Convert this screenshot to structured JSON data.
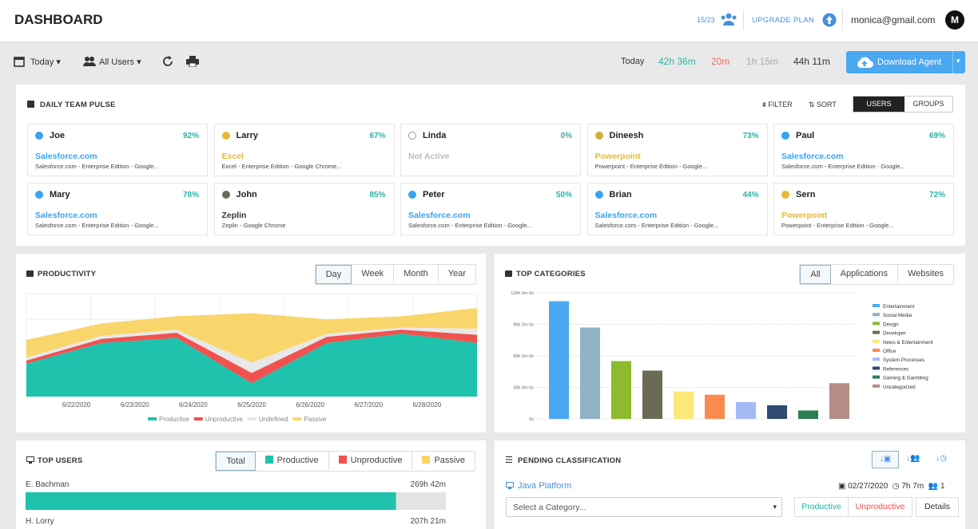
{
  "header": {
    "title": "DASHBOARD",
    "seats": "15/23",
    "upgrade": "UPGRADE PLAN",
    "email": "monica@gmail.com",
    "avatar": "M"
  },
  "toolbar": {
    "date": "Today",
    "users": "All Users",
    "time_label": "Today",
    "times": [
      {
        "text": "42h 36m",
        "color": "#2ab3a6"
      },
      {
        "text": "20m",
        "color": "#f26a5b"
      },
      {
        "text": "1h 15m",
        "color": "#aaaaaa"
      },
      {
        "text": "44h 11m",
        "color": "#333333"
      }
    ],
    "download": "Download Agent"
  },
  "pulse": {
    "title": "DAILY TEAM PULSE",
    "filter": "FILTER",
    "sort": "SORT",
    "tabs": [
      "USERS",
      "GROUPS"
    ],
    "cards": [
      {
        "name": "Joe",
        "pct": "92%",
        "app": "Salesforce.com",
        "detail": "Salesforce.com - Enterprise Edition - Google...",
        "dot": "#3ba3f0",
        "app_color": "#3ba3f0"
      },
      {
        "name": "Larry",
        "pct": "67%",
        "app": "Excel",
        "detail": "Excel - Enterprise Edition - Google Chrome...",
        "dot": "#e6b93a",
        "app_color": "#e6b93a"
      },
      {
        "name": "Linda",
        "pct": "0%",
        "app": "Not Active",
        "dot": "#ffffff",
        "app_color": "#bbbbbb"
      },
      {
        "name": "Dineesh",
        "pct": "73%",
        "app": "Powerpoint",
        "detail": "Powerpoint - Enterprise Edition - Google...",
        "dot": "#d4ad3f",
        "app_color": "#e6b93a"
      },
      {
        "name": "Paul",
        "pct": "69%",
        "app": "Salesforce.com",
        "detail": "Salesforce.com - Enterprise Edition - Google...",
        "dot": "#3ba3f0",
        "app_color": "#3ba3f0"
      },
      {
        "name": "Mary",
        "pct": "78%",
        "app": "Salesforce.com",
        "detail": "Salesforce.com - Enterprise Edition - Google...",
        "dot": "#3ba3f0",
        "app_color": "#3ba3f0"
      },
      {
        "name": "John",
        "pct": "85%",
        "app": "Zeplin",
        "detail": "Zeplin - Google Chrome",
        "dot": "#6b6b55",
        "app_color": "#333333"
      },
      {
        "name": "Peter",
        "pct": "50%",
        "app": "Salesforce.com",
        "detail": "Salesforce.com - Enterprise Edition - Google...",
        "dot": "#3ba3f0",
        "app_color": "#3ba3f0"
      },
      {
        "name": "Brian",
        "pct": "44%",
        "app": "Salesforce.com",
        "detail": "Salesforce.com - Enterprise Edition - Google...",
        "dot": "#3ba3f0",
        "app_color": "#3ba3f0"
      },
      {
        "name": "Sern",
        "pct": "72%",
        "app": "Powerpoint",
        "detail": "Powerpoint - Enterprise Edition - Google...",
        "dot": "#e6b93a",
        "app_color": "#e6b93a"
      }
    ]
  },
  "productivity": {
    "title": "PRODUCTIVITY",
    "tabs": [
      "Day",
      "Week",
      "Month",
      "Year"
    ],
    "chart": {
      "type": "area",
      "stacked": true,
      "categories": [
        "6/22/2020",
        "6/23/2020",
        "6/24/2020",
        "6/25/2020",
        "6/26/2020",
        "6/27/2020",
        "6/28/2020"
      ],
      "ylim": [
        0,
        100
      ],
      "series": [
        {
          "name": "Productive",
          "color": "#1fc2ad",
          "values": [
            32,
            52,
            57,
            13,
            52,
            61,
            52
          ]
        },
        {
          "name": "Unproductive",
          "color": "#f0524f",
          "values": [
            3,
            4,
            5,
            10,
            6,
            4,
            8
          ]
        },
        {
          "name": "Undefined",
          "color": "#e8e8e8",
          "values": [
            3,
            3,
            3,
            10,
            3,
            2,
            6
          ]
        },
        {
          "name": "Passive",
          "color": "#f8d66b",
          "values": [
            17,
            12,
            13,
            48,
            14,
            11,
            20
          ]
        }
      ]
    }
  },
  "categories": {
    "title": "TOP CATEGORIES",
    "tabs": [
      "All",
      "Applications",
      "Websites"
    ],
    "chart": {
      "type": "bar",
      "categories": [
        "Entertainment",
        "Social Media",
        "Design",
        "Developer",
        "News & Entertainment",
        "Office",
        "System Processes",
        "References",
        "Gaming & Gambling",
        "Uncategorized"
      ],
      "values": [
        112,
        87,
        55,
        46,
        26,
        23,
        16,
        13,
        8,
        34
      ],
      "colors": [
        "#4aa8f0",
        "#8fb3c4",
        "#8dbb2e",
        "#6b6b55",
        "#fde97a",
        "#fb8a4f",
        "#a5b9f5",
        "#2f4a70",
        "#2e7d4f",
        "#b58c86"
      ],
      "ylim": [
        0,
        120
      ],
      "yticks": [
        {
          "value": 0,
          "label": "0s"
        },
        {
          "value": 30,
          "label": "30h 0m 0s"
        },
        {
          "value": 60,
          "label": "60h 0m 0s"
        },
        {
          "value": 90,
          "label": "90h 0m 0s"
        },
        {
          "value": 120,
          "label": "120h 0m 0s"
        }
      ],
      "grid": true
    }
  },
  "top_users": {
    "title": "TOP USERS",
    "tabs": [
      {
        "label": "Total"
      },
      {
        "label": "Productive",
        "color": "#1fc2ad"
      },
      {
        "label": "Unproductive",
        "color": "#f0524f"
      },
      {
        "label": "Passive",
        "color": "#f8d66b"
      }
    ],
    "chart": {
      "type": "hbar",
      "categories": [
        "E. Bachman",
        "H. Lorry"
      ],
      "values": [
        269.7,
        207.35
      ],
      "value_labels": [
        "269h 42m",
        "207h 21m"
      ],
      "xlim": [
        0,
        306
      ],
      "color": "#1fc2ad"
    }
  },
  "pending": {
    "title": "PENDING CLASSIFICATION",
    "item": "Java Platform",
    "date": "02/27/2020",
    "duration": "7h 7m",
    "count": "1",
    "select": "Select a Category...",
    "buttons": [
      "Productive",
      "Unproductive",
      "Details"
    ]
  }
}
